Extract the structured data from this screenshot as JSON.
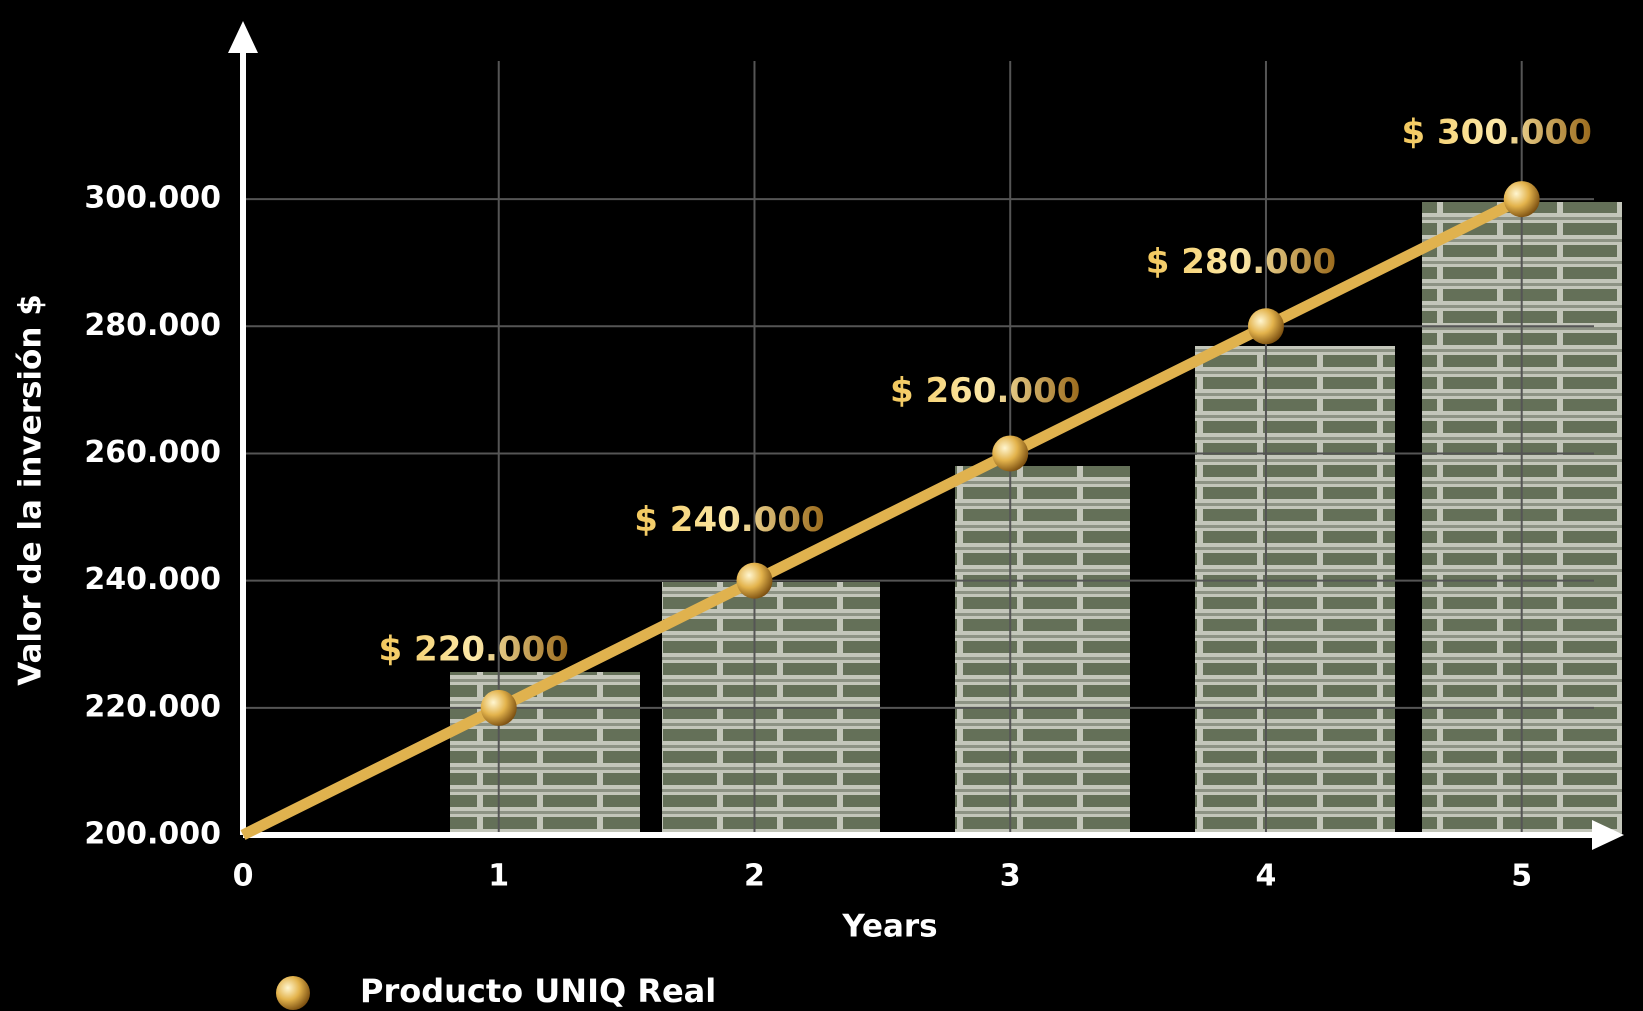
{
  "chart_data": {
    "type": "line",
    "x": [
      0,
      1,
      2,
      3,
      4,
      5
    ],
    "xlabel": "Years",
    "ylabel": "Valor de la inversión $",
    "series": [
      {
        "name": "Producto UNIQ Real",
        "color": "#d9a441",
        "values": [
          200000,
          220000,
          240000,
          260000,
          280000,
          300000
        ],
        "value_labels": [
          null,
          "$ 220.000",
          "$ 240.000",
          "$ 260.000",
          "$ 280.000",
          "$ 300.000"
        ]
      }
    ],
    "xlim": [
      0,
      5.4
    ],
    "ylim": [
      200000,
      328000
    ],
    "xticks": [
      0,
      1,
      2,
      3,
      4,
      5
    ],
    "yticks": [
      {
        "value": 200000,
        "label": "200.000"
      },
      {
        "value": 220000,
        "label": "220.000"
      },
      {
        "value": 240000,
        "label": "240.000"
      },
      {
        "value": 260000,
        "label": "260.000"
      },
      {
        "value": 280000,
        "label": "280.000"
      },
      {
        "value": 300000,
        "label": "300.000"
      }
    ],
    "grid": true
  }
}
